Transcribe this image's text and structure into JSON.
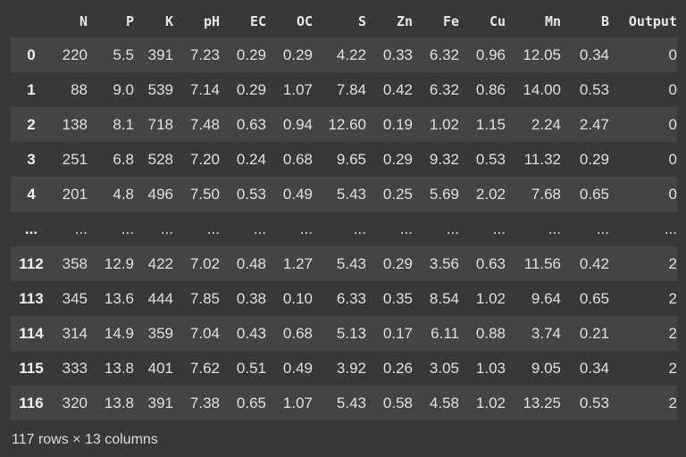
{
  "dataframe": {
    "index_header": "",
    "columns": [
      "N",
      "P",
      "K",
      "pH",
      "EC",
      "OC",
      "S",
      "Zn",
      "Fe",
      "Cu",
      "Mn",
      "B",
      "Output"
    ],
    "rows": [
      {
        "index": "0",
        "cells": [
          "220",
          "5.5",
          "391",
          "7.23",
          "0.29",
          "0.29",
          "4.22",
          "0.33",
          "6.32",
          "0.96",
          "12.05",
          "0.34",
          "0"
        ]
      },
      {
        "index": "1",
        "cells": [
          "88",
          "9.0",
          "539",
          "7.14",
          "0.29",
          "1.07",
          "7.84",
          "0.42",
          "6.32",
          "0.86",
          "14.00",
          "0.53",
          "0"
        ]
      },
      {
        "index": "2",
        "cells": [
          "138",
          "8.1",
          "718",
          "7.48",
          "0.63",
          "0.94",
          "12.60",
          "0.19",
          "1.02",
          "1.15",
          "2.24",
          "2.47",
          "0"
        ]
      },
      {
        "index": "3",
        "cells": [
          "251",
          "6.8",
          "528",
          "7.20",
          "0.24",
          "0.68",
          "9.65",
          "0.29",
          "9.32",
          "0.53",
          "11.32",
          "0.29",
          "0"
        ]
      },
      {
        "index": "4",
        "cells": [
          "201",
          "4.8",
          "496",
          "7.50",
          "0.53",
          "0.49",
          "5.43",
          "0.25",
          "5.69",
          "2.02",
          "7.68",
          "0.65",
          "0"
        ]
      },
      {
        "index": "...",
        "cells": [
          "...",
          "...",
          "...",
          "...",
          "...",
          "...",
          "...",
          "...",
          "...",
          "...",
          "...",
          "...",
          "..."
        ]
      },
      {
        "index": "112",
        "cells": [
          "358",
          "12.9",
          "422",
          "7.02",
          "0.48",
          "1.27",
          "5.43",
          "0.29",
          "3.56",
          "0.63",
          "11.56",
          "0.42",
          "2"
        ]
      },
      {
        "index": "113",
        "cells": [
          "345",
          "13.6",
          "444",
          "7.85",
          "0.38",
          "0.10",
          "6.33",
          "0.35",
          "8.54",
          "1.02",
          "9.64",
          "0.65",
          "2"
        ]
      },
      {
        "index": "114",
        "cells": [
          "314",
          "14.9",
          "359",
          "7.04",
          "0.43",
          "0.68",
          "5.13",
          "0.17",
          "6.11",
          "0.88",
          "3.74",
          "0.21",
          "2"
        ]
      },
      {
        "index": "115",
        "cells": [
          "333",
          "13.8",
          "401",
          "7.62",
          "0.51",
          "0.49",
          "3.92",
          "0.26",
          "3.05",
          "1.03",
          "9.05",
          "0.34",
          "2"
        ]
      },
      {
        "index": "116",
        "cells": [
          "320",
          "13.8",
          "391",
          "7.38",
          "0.65",
          "1.07",
          "5.43",
          "0.58",
          "4.58",
          "1.02",
          "13.25",
          "0.53",
          "2"
        ]
      }
    ],
    "shape_text": "117 rows × 13 columns"
  },
  "colors": {
    "background": "#383838",
    "striped_row": "#444444",
    "text": "#e0e0e0"
  }
}
